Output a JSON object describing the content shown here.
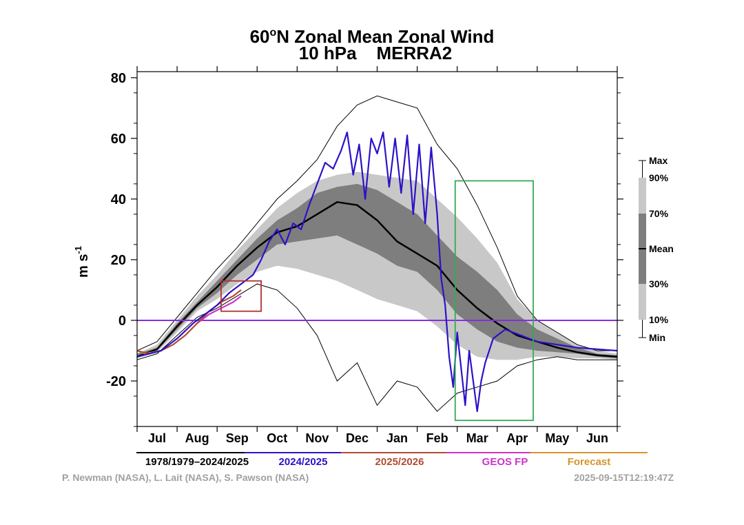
{
  "chart_data": {
    "type": "line",
    "title": "60°N Zonal Mean Zonal Wind",
    "title_prefix": "60",
    "title_degree": "o",
    "title_suffix": "N Zonal Mean Zonal Wind",
    "subtitle": "10 hPa    MERRA2",
    "ylabel": "m s",
    "ylabel_exp": "-1",
    "ylim": [
      -35,
      82
    ],
    "yticks": [
      80,
      60,
      40,
      20,
      0,
      -20
    ],
    "xlim": [
      0,
      12
    ],
    "months": [
      "Jul",
      "Aug",
      "Sep",
      "Oct",
      "Nov",
      "Dec",
      "Jan",
      "Feb",
      "Mar",
      "Apr",
      "May",
      "Jun"
    ],
    "climatology": {
      "x": [
        0,
        0.5,
        1,
        1.5,
        2,
        2.5,
        3,
        3.5,
        4,
        4.5,
        5,
        5.5,
        6,
        6.5,
        7,
        7.5,
        8,
        8.5,
        9,
        9.5,
        10,
        10.5,
        11,
        11.5,
        12
      ],
      "max": [
        -10,
        -7,
        1,
        9,
        17,
        24,
        32,
        40,
        46,
        53,
        64,
        71,
        74,
        72,
        70,
        58,
        50,
        38,
        24,
        8,
        0,
        -4,
        -8,
        -10,
        -10
      ],
      "p90": [
        -11,
        -8,
        0,
        8,
        15,
        23,
        30,
        37,
        42,
        46,
        48,
        49,
        48,
        47,
        46,
        40,
        34,
        27,
        19,
        7,
        0,
        -4,
        -8,
        -10,
        -11
      ],
      "p70": [
        -11,
        -9,
        -1,
        6,
        13,
        20,
        27,
        33,
        37,
        42,
        44,
        45,
        43,
        39,
        35,
        28,
        21,
        16,
        10,
        2,
        -3,
        -6,
        -9,
        -11,
        -11.5
      ],
      "mean": [
        -12,
        -9.5,
        -2,
        5,
        11,
        18,
        24,
        29,
        31,
        35,
        39,
        38,
        33,
        26,
        22,
        18,
        10,
        4,
        -1,
        -5,
        -7,
        -9,
        -10.5,
        -11.5,
        -12
      ],
      "p30": [
        -12,
        -10,
        -3,
        4,
        9,
        15,
        20,
        25,
        26,
        27,
        28,
        25,
        22,
        18,
        16,
        10,
        2,
        -3,
        -7,
        -9,
        -10,
        -10.5,
        -11,
        -12,
        -12.5
      ],
      "p10": [
        -12.5,
        -10.5,
        -4,
        3,
        7,
        12,
        16,
        18,
        17,
        15,
        13,
        10,
        7,
        5,
        3,
        -2,
        -8,
        -12,
        -13,
        -13,
        -12,
        -12,
        -12.5,
        -12.5,
        -13
      ],
      "min": [
        -13,
        -11,
        -5,
        1,
        4,
        8,
        12,
        10,
        4,
        -5,
        -20,
        -14,
        -28,
        -20,
        -22,
        -30,
        -24,
        -22,
        -20,
        -15,
        -13,
        -12,
        -13,
        -13,
        -13
      ]
    },
    "series": [
      {
        "name": "2024/2025",
        "color": "#2b12c8",
        "x": [
          0,
          0.3,
          0.6,
          1,
          1.4,
          1.8,
          2,
          2.3,
          2.6,
          2.9,
          3.1,
          3.3,
          3.5,
          3.7,
          3.9,
          4.1,
          4.3,
          4.5,
          4.7,
          4.9,
          5.1,
          5.25,
          5.4,
          5.55,
          5.7,
          5.85,
          6,
          6.15,
          6.3,
          6.45,
          6.6,
          6.75,
          6.9,
          7.05,
          7.2,
          7.35,
          7.5,
          7.6,
          7.7,
          7.8,
          7.9,
          8.0,
          8.1,
          8.2,
          8.3,
          8.4,
          8.5,
          8.6,
          8.7,
          8.8,
          8.9,
          9.0,
          9.2,
          9.4,
          9.6,
          9.8,
          10,
          10.5,
          11,
          11.5,
          12
        ],
        "values": [
          -12,
          -11,
          -10,
          -6,
          -1,
          3,
          5,
          9,
          12,
          15,
          20,
          26,
          30,
          25,
          32,
          30,
          38,
          45,
          52,
          50,
          56,
          62,
          48,
          58,
          40,
          60,
          55,
          62,
          44,
          60,
          42,
          61,
          35,
          58,
          32,
          57,
          35,
          14,
          5,
          -12,
          -22,
          -4,
          -16,
          -28,
          -10,
          -20,
          -30,
          -20,
          -14,
          -10,
          -6,
          -5,
          -3,
          -4,
          -5,
          -6,
          -7,
          -8,
          -9,
          -9.5,
          -10
        ]
      },
      {
        "name": "2025/2026",
        "color": "#b34a33",
        "x": [
          0,
          0.3,
          0.6,
          0.9,
          1.2,
          1.5,
          1.8,
          2.1,
          2.4,
          2.6
        ],
        "values": [
          -10,
          -11,
          -10,
          -8,
          -5,
          -1,
          3,
          6,
          8,
          10
        ]
      },
      {
        "name": "GEOS FP",
        "color": "#cc33cc",
        "x": [
          1.5,
          1.8,
          2.1,
          2.4,
          2.6
        ],
        "values": [
          -1,
          2,
          4,
          6,
          8
        ]
      },
      {
        "name": "Forecast",
        "color": "#d4952b",
        "x": [
          0,
          0.2,
          0.4,
          0.6
        ],
        "values": [
          -10,
          -11,
          -10.5,
          -10
        ]
      }
    ],
    "zero_line_color": "#8a2be2",
    "highlight_boxes": [
      {
        "x": [
          2.1,
          3.1
        ],
        "y": [
          3,
          13
        ],
        "color": "#b03030"
      },
      {
        "x": [
          7.95,
          9.9
        ],
        "y": [
          -33,
          46
        ],
        "color": "#33aa55"
      }
    ],
    "legend": [
      {
        "label": "1978/1979–2024/2025",
        "color": "#000000"
      },
      {
        "label": "2024/2025",
        "color": "#2b12c8"
      },
      {
        "label": "2025/2026",
        "color": "#b34a33"
      },
      {
        "label": "GEOS FP",
        "color": "#cc33cc"
      },
      {
        "label": "Forecast",
        "color": "#d4952b"
      }
    ],
    "percentile_key": [
      "Max",
      "90%",
      "70%",
      "Mean",
      "30%",
      "10%",
      "Min"
    ],
    "credits": "P. Newman (NASA), L. Lait (NASA), S. Pawson (NASA)",
    "timestamp": "2025-09-15T12:19:47Z"
  }
}
